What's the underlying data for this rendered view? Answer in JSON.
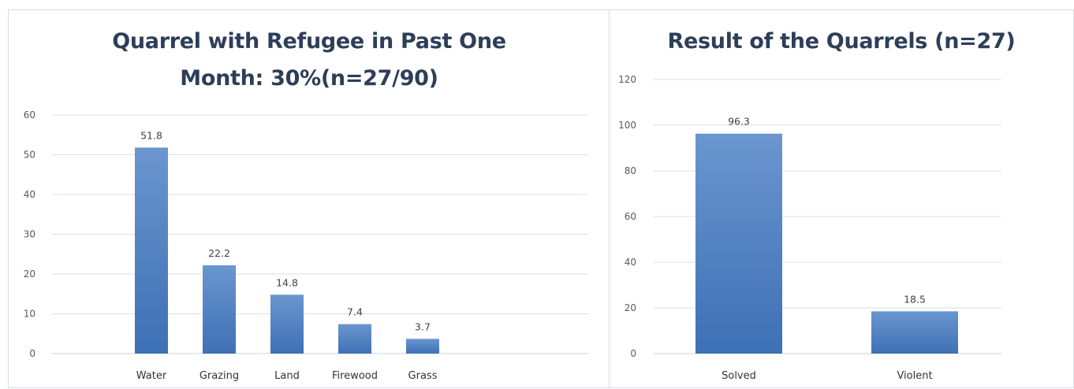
{
  "chart_data": [
    {
      "type": "bar",
      "title_line1": "Quarrel with Refugee in Past One",
      "title_line2": "Month: 30%(n=27/90)",
      "xlabel": "",
      "ylabel": "",
      "categories": [
        "Water",
        "Grazing",
        "Land",
        "Firewood",
        "Grass"
      ],
      "values": [
        51.8,
        22.2,
        14.8,
        7.4,
        3.7
      ],
      "value_labels": [
        "51.8",
        "22.2",
        "14.8",
        "7.4",
        "3.7"
      ],
      "ylim": [
        0,
        60
      ],
      "yticks": [
        "0",
        "10",
        "20",
        "30",
        "40",
        "50",
        "60"
      ],
      "grid": true,
      "legend": "none",
      "bar_color": "#4a7ec0"
    },
    {
      "type": "bar",
      "title": "Result of the Quarrels (n=27)",
      "xlabel": "",
      "ylabel": "",
      "categories": [
        "Solved",
        "Violent"
      ],
      "values": [
        96.3,
        18.5
      ],
      "value_labels": [
        "96.3",
        "18.5"
      ],
      "ylim": [
        0,
        120
      ],
      "yticks": [
        "0",
        "20",
        "40",
        "60",
        "80",
        "100",
        "120"
      ],
      "grid": true,
      "legend": "none",
      "bar_color": "#4a7ec0"
    }
  ]
}
